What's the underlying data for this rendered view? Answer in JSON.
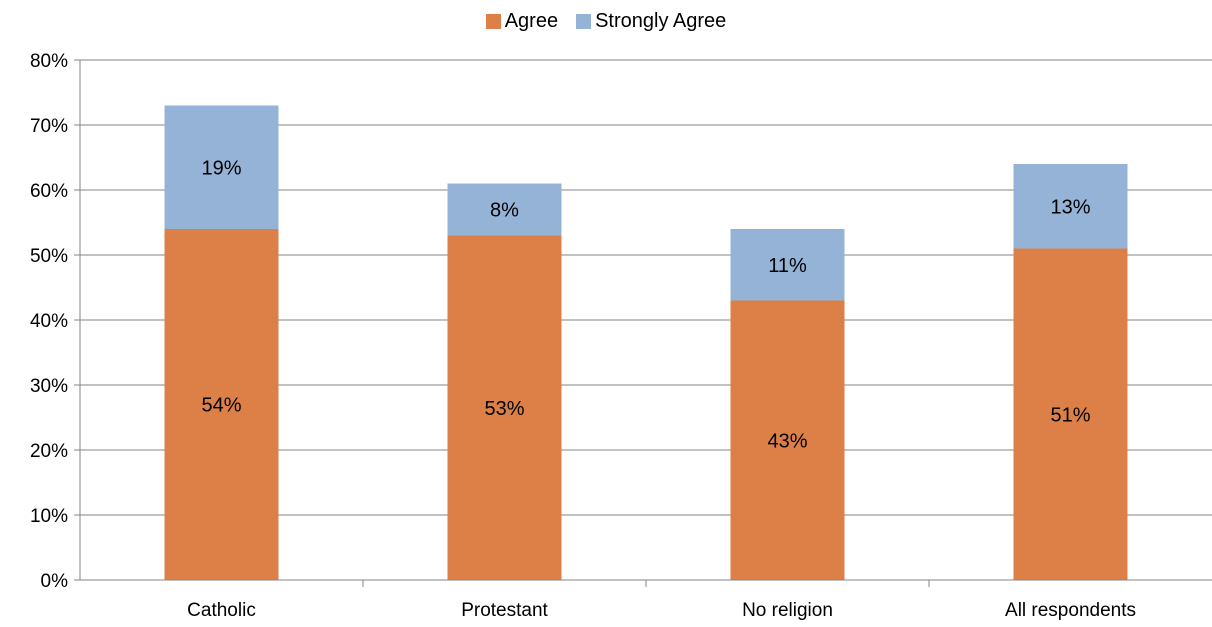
{
  "chart_data": {
    "type": "bar",
    "stacked": true,
    "categories": [
      "Catholic",
      "Protestant",
      "No religion",
      "All respondents"
    ],
    "series": [
      {
        "name": "Agree",
        "values": [
          54,
          53,
          43,
          51
        ],
        "labels": [
          "54%",
          "53%",
          "43%",
          "51%"
        ],
        "color": "#DD8047"
      },
      {
        "name": "Strongly Agree",
        "values": [
          19,
          8,
          11,
          13
        ],
        "labels": [
          "19%",
          "8%",
          "11%",
          "13%"
        ],
        "color": "#95B3D7"
      }
    ],
    "y_ticks": [
      "0%",
      "10%",
      "20%",
      "30%",
      "40%",
      "50%",
      "60%",
      "70%",
      "80%"
    ],
    "ylim": [
      0,
      80
    ],
    "grid": true,
    "legend_position": "top-center"
  }
}
